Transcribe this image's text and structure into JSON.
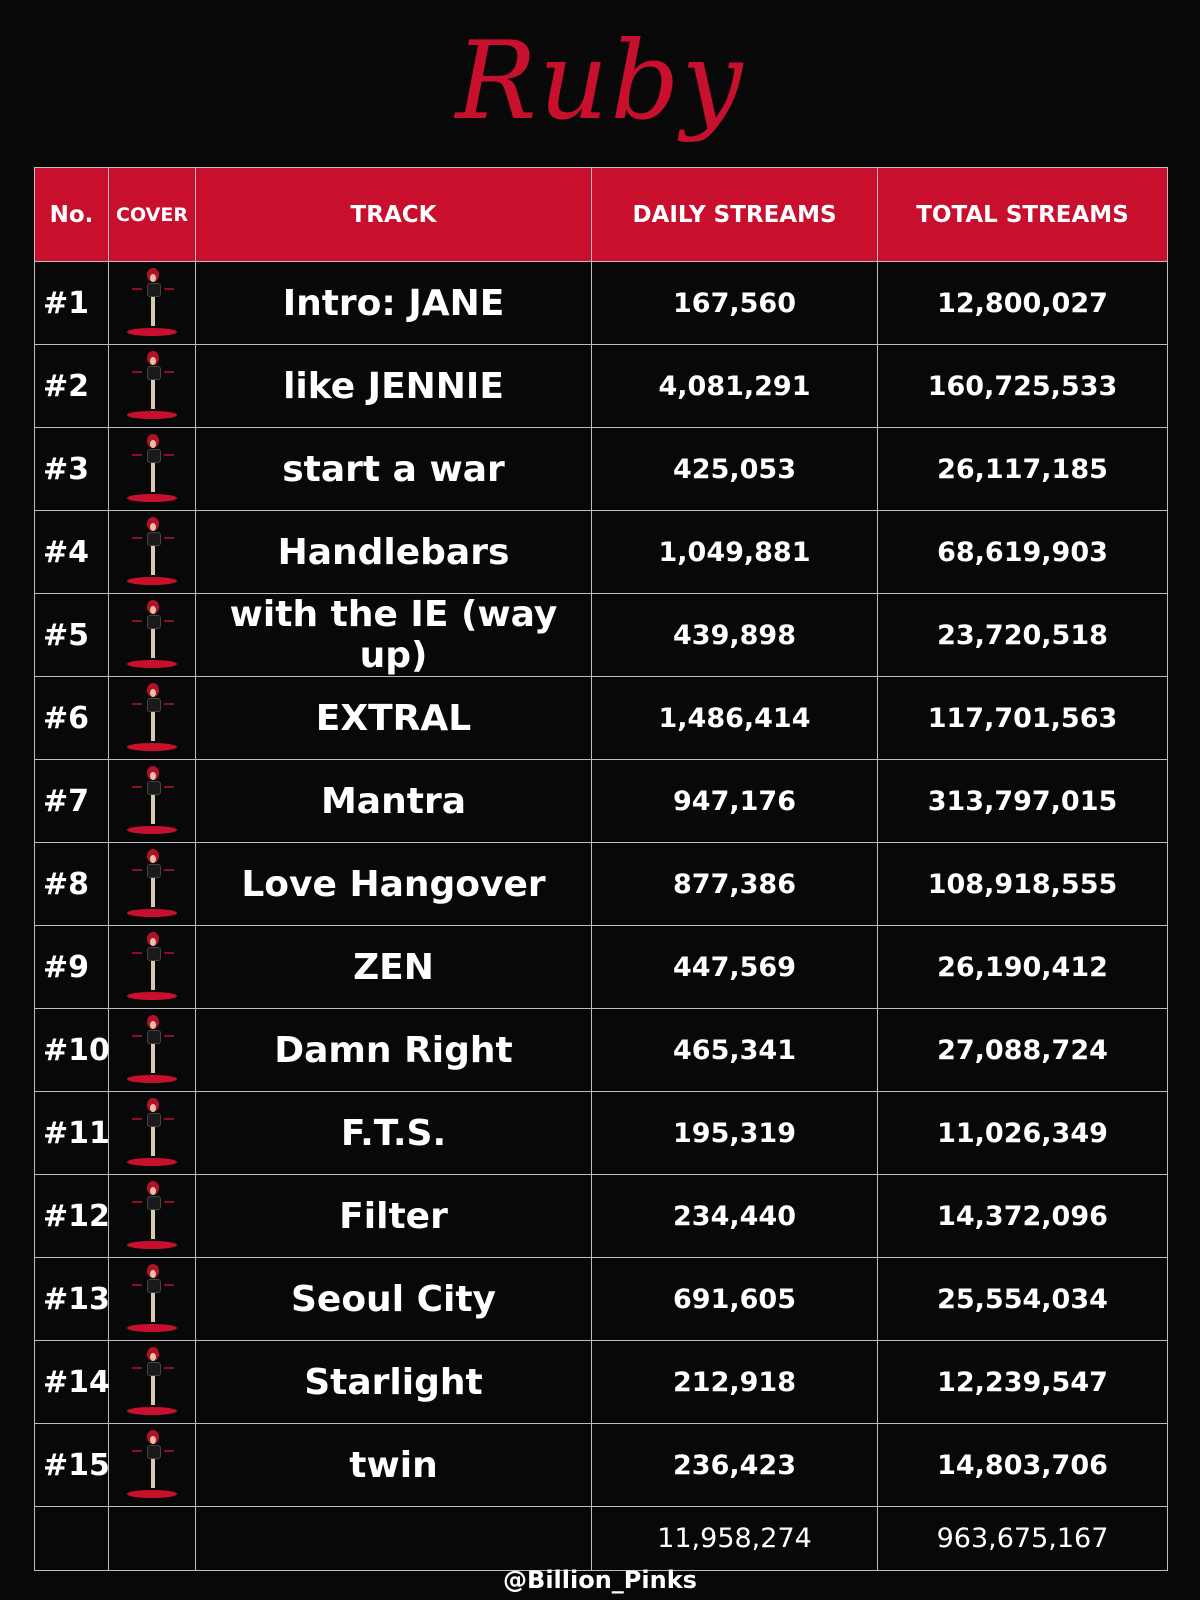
{
  "title": "Ruby",
  "headers": {
    "no": "No.",
    "cover": "COVER",
    "track": "TRACK",
    "daily": "DAILY STREAMS",
    "total": "TOTAL STREAMS"
  },
  "colors": {
    "accent": "#c8102e",
    "background": "#080808",
    "grid": "#bdbdbd"
  },
  "rows": [
    {
      "no": "#1",
      "track": "Intro: JANE",
      "daily": "167,560",
      "total": "12,800,027"
    },
    {
      "no": "#2",
      "track": "like JENNIE",
      "daily": "4,081,291",
      "total": "160,725,533"
    },
    {
      "no": "#3",
      "track": "start a war",
      "daily": "425,053",
      "total": "26,117,185"
    },
    {
      "no": "#4",
      "track": "Handlebars",
      "daily": "1,049,881",
      "total": "68,619,903"
    },
    {
      "no": "#5",
      "track": "with the IE (way up)",
      "daily": "439,898",
      "total": "23,720,518"
    },
    {
      "no": "#6",
      "track": "EXTRAL",
      "daily": "1,486,414",
      "total": "117,701,563"
    },
    {
      "no": "#7",
      "track": "Mantra",
      "daily": "947,176",
      "total": "313,797,015"
    },
    {
      "no": "#8",
      "track": "Love Hangover",
      "daily": "877,386",
      "total": "108,918,555"
    },
    {
      "no": "#9",
      "track": "ZEN",
      "daily": "447,569",
      "total": "26,190,412"
    },
    {
      "no": "#10",
      "track": "Damn Right",
      "daily": "465,341",
      "total": "27,088,724"
    },
    {
      "no": "#11",
      "track": "F.T.S.",
      "daily": "195,319",
      "total": "11,026,349"
    },
    {
      "no": "#12",
      "track": "Filter",
      "daily": "234,440",
      "total": "14,372,096"
    },
    {
      "no": "#13",
      "track": "Seoul City",
      "daily": "691,605",
      "total": "25,554,034"
    },
    {
      "no": "#14",
      "track": "Starlight",
      "daily": "212,918",
      "total": "12,239,547"
    },
    {
      "no": "#15",
      "track": "twin",
      "daily": "236,423",
      "total": "14,803,706"
    }
  ],
  "totals": {
    "daily": "11,958,274",
    "total": "963,675,167"
  },
  "cover_icon": "album-cover-figure-icon",
  "watermark": "@Billion_Pinks"
}
